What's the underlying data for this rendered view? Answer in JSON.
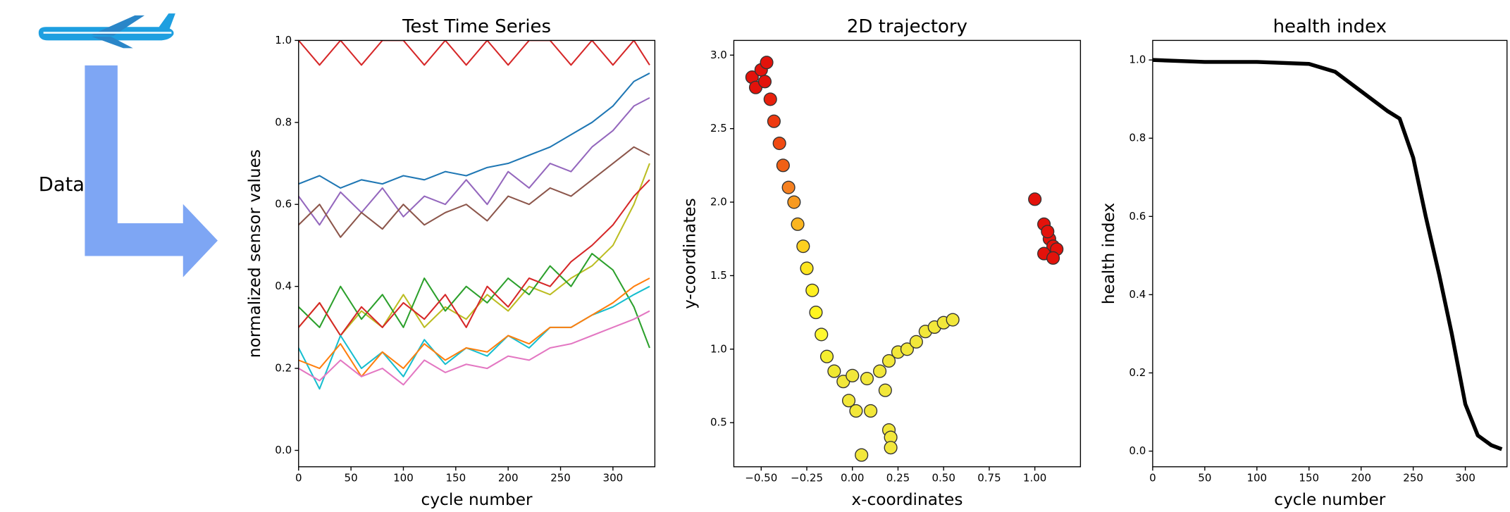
{
  "side_label": "Data",
  "chart_data": [
    {
      "type": "line",
      "title": "Test Time Series",
      "xlabel": "cycle number",
      "ylabel": "normalized sensor values",
      "x": [
        0,
        20,
        40,
        60,
        80,
        100,
        120,
        140,
        160,
        180,
        200,
        220,
        240,
        260,
        280,
        300,
        320,
        335
      ],
      "xlim": [
        0,
        340
      ],
      "xticks": [
        0,
        50,
        100,
        150,
        200,
        250,
        300
      ],
      "ylim": [
        -0.04,
        1.0
      ],
      "yticks": [
        {
          "value": 0,
          "label": "0.0"
        },
        0.2,
        0.4,
        0.6,
        0.8,
        {
          "value": 1,
          "label": "1.0"
        }
      ],
      "series": [
        {
          "color": "#d62728",
          "values": [
            1.0,
            0.94,
            1.0,
            0.94,
            1.0,
            1.0,
            0.94,
            1.0,
            0.94,
            1.0,
            0.94,
            1.0,
            1.0,
            0.94,
            1.0,
            0.94,
            1.0,
            0.94
          ]
        },
        {
          "color": "#9467bd",
          "values": [
            0.62,
            0.55,
            0.63,
            0.58,
            0.64,
            0.57,
            0.62,
            0.6,
            0.66,
            0.6,
            0.68,
            0.64,
            0.7,
            0.68,
            0.74,
            0.78,
            0.84,
            0.86
          ]
        },
        {
          "color": "#1f77b4",
          "values": [
            0.65,
            0.67,
            0.64,
            0.66,
            0.65,
            0.67,
            0.66,
            0.68,
            0.67,
            0.69,
            0.7,
            0.72,
            0.74,
            0.77,
            0.8,
            0.84,
            0.9,
            0.92
          ]
        },
        {
          "color": "#8c564b",
          "values": [
            0.55,
            0.6,
            0.52,
            0.58,
            0.54,
            0.6,
            0.55,
            0.58,
            0.6,
            0.56,
            0.62,
            0.6,
            0.64,
            0.62,
            0.66,
            0.7,
            0.74,
            0.72
          ]
        },
        {
          "color": "#bcbd22",
          "values": [
            0.3,
            0.36,
            0.28,
            0.34,
            0.3,
            0.38,
            0.3,
            0.35,
            0.32,
            0.38,
            0.34,
            0.4,
            0.38,
            0.42,
            0.45,
            0.5,
            0.6,
            0.7
          ]
        },
        {
          "color": "#2ca02c",
          "values": [
            0.35,
            0.3,
            0.4,
            0.32,
            0.38,
            0.3,
            0.42,
            0.34,
            0.4,
            0.36,
            0.42,
            0.38,
            0.45,
            0.4,
            0.48,
            0.44,
            0.35,
            0.25
          ]
        },
        {
          "color": "#d62728",
          "values": [
            0.3,
            0.36,
            0.28,
            0.35,
            0.3,
            0.36,
            0.32,
            0.38,
            0.3,
            0.4,
            0.35,
            0.42,
            0.4,
            0.46,
            0.5,
            0.55,
            0.62,
            0.66
          ]
        },
        {
          "color": "#17becf",
          "values": [
            0.25,
            0.15,
            0.28,
            0.2,
            0.24,
            0.18,
            0.27,
            0.21,
            0.25,
            0.23,
            0.28,
            0.25,
            0.3,
            0.3,
            0.33,
            0.35,
            0.38,
            0.4
          ]
        },
        {
          "color": "#ff7f0e",
          "values": [
            0.22,
            0.2,
            0.26,
            0.18,
            0.24,
            0.2,
            0.26,
            0.22,
            0.25,
            0.24,
            0.28,
            0.26,
            0.3,
            0.3,
            0.33,
            0.36,
            0.4,
            0.42
          ]
        },
        {
          "color": "#e377c2",
          "values": [
            0.2,
            0.17,
            0.22,
            0.18,
            0.2,
            0.16,
            0.22,
            0.19,
            0.21,
            0.2,
            0.23,
            0.22,
            0.25,
            0.26,
            0.28,
            0.3,
            0.32,
            0.34
          ]
        }
      ]
    },
    {
      "type": "scatter",
      "title": "2D trajectory",
      "xlabel": "x-coordinates",
      "ylabel": "y-coordinates",
      "xlim": [
        -0.65,
        1.25
      ],
      "xticks": [
        {
          "value": -0.5,
          "label": "−0.50"
        },
        {
          "value": -0.25,
          "label": "−0.25"
        },
        {
          "value": 0,
          "label": "0.00"
        },
        0.25,
        {
          "value": 0.5,
          "label": "0.50"
        },
        0.75,
        {
          "value": 1,
          "label": "1.00"
        }
      ],
      "ylim": [
        0.2,
        3.1
      ],
      "yticks": [
        0.5,
        {
          "value": 1,
          "label": "1.0"
        },
        1.5,
        {
          "value": 2,
          "label": "2.0"
        },
        2.5,
        {
          "value": 3,
          "label": "3.0"
        }
      ],
      "x": [
        -0.55,
        -0.5,
        -0.47,
        -0.53,
        -0.48,
        -0.45,
        -0.43,
        -0.4,
        -0.38,
        -0.35,
        -0.32,
        -0.3,
        -0.27,
        -0.25,
        -0.22,
        -0.2,
        -0.17,
        -0.14,
        -0.1,
        -0.05,
        0.0,
        -0.02,
        0.02,
        0.1,
        0.08,
        0.15,
        0.2,
        0.25,
        0.3,
        0.35,
        0.4,
        0.45,
        0.5,
        0.55,
        0.18,
        0.2,
        0.21,
        0.21,
        0.05,
        1.0,
        1.05,
        1.08,
        1.1,
        1.05,
        1.12,
        1.07,
        1.1
      ],
      "y": [
        2.85,
        2.9,
        2.95,
        2.78,
        2.82,
        2.7,
        2.55,
        2.4,
        2.25,
        2.1,
        2.0,
        1.85,
        1.7,
        1.55,
        1.4,
        1.25,
        1.1,
        0.95,
        0.85,
        0.78,
        0.82,
        0.65,
        0.58,
        0.58,
        0.8,
        0.85,
        0.92,
        0.98,
        1.0,
        1.05,
        1.12,
        1.15,
        1.18,
        1.2,
        0.72,
        0.45,
        0.4,
        0.33,
        0.28,
        2.02,
        1.85,
        1.75,
        1.7,
        1.65,
        1.68,
        1.8,
        1.62
      ],
      "colors": [
        "#e3120b",
        "#e3120b",
        "#e3120b",
        "#e3120b",
        "#e3120b",
        "#e8200c",
        "#ee3a10",
        "#f04a12",
        "#f06015",
        "#f58020",
        "#f79a20",
        "#fbb520",
        "#fdd020",
        "#fee520",
        "#fff020",
        "#fff520",
        "#fff830",
        "#f5ee30",
        "#f0e830",
        "#f2e73a",
        "#f2e73a",
        "#f2e73a",
        "#f2e73a",
        "#f2e73a",
        "#f2e73a",
        "#f2e73a",
        "#f2e73a",
        "#f2e73a",
        "#f2e73a",
        "#f2e73a",
        "#f2e73a",
        "#f2e73a",
        "#f2e73a",
        "#f2e73a",
        "#f2e73a",
        "#f2e73a",
        "#f2e73a",
        "#f2e73a",
        "#f2e73a",
        "#e3120b",
        "#e3120b",
        "#e3120b",
        "#e3120b",
        "#e3120b",
        "#e3120b",
        "#e3120b",
        "#e3120b"
      ]
    },
    {
      "type": "line",
      "title": "health index",
      "xlabel": "cycle number",
      "ylabel": "health index",
      "x": [
        0,
        50,
        100,
        150,
        175,
        200,
        225,
        237,
        250,
        262,
        275,
        287,
        300,
        312,
        325,
        335
      ],
      "xlim": [
        0,
        340
      ],
      "xticks": [
        0,
        50,
        100,
        150,
        200,
        250,
        300
      ],
      "ylim": [
        -0.04,
        1.05
      ],
      "yticks": [
        {
          "value": 0,
          "label": "0.0"
        },
        0.2,
        0.4,
        0.6,
        0.8,
        {
          "value": 1,
          "label": "1.0"
        }
      ],
      "series": [
        {
          "color": "#000000",
          "values": [
            1.0,
            0.995,
            0.995,
            0.99,
            0.97,
            0.92,
            0.87,
            0.85,
            0.75,
            0.6,
            0.45,
            0.3,
            0.12,
            0.04,
            0.015,
            0.005
          ]
        }
      ]
    }
  ]
}
